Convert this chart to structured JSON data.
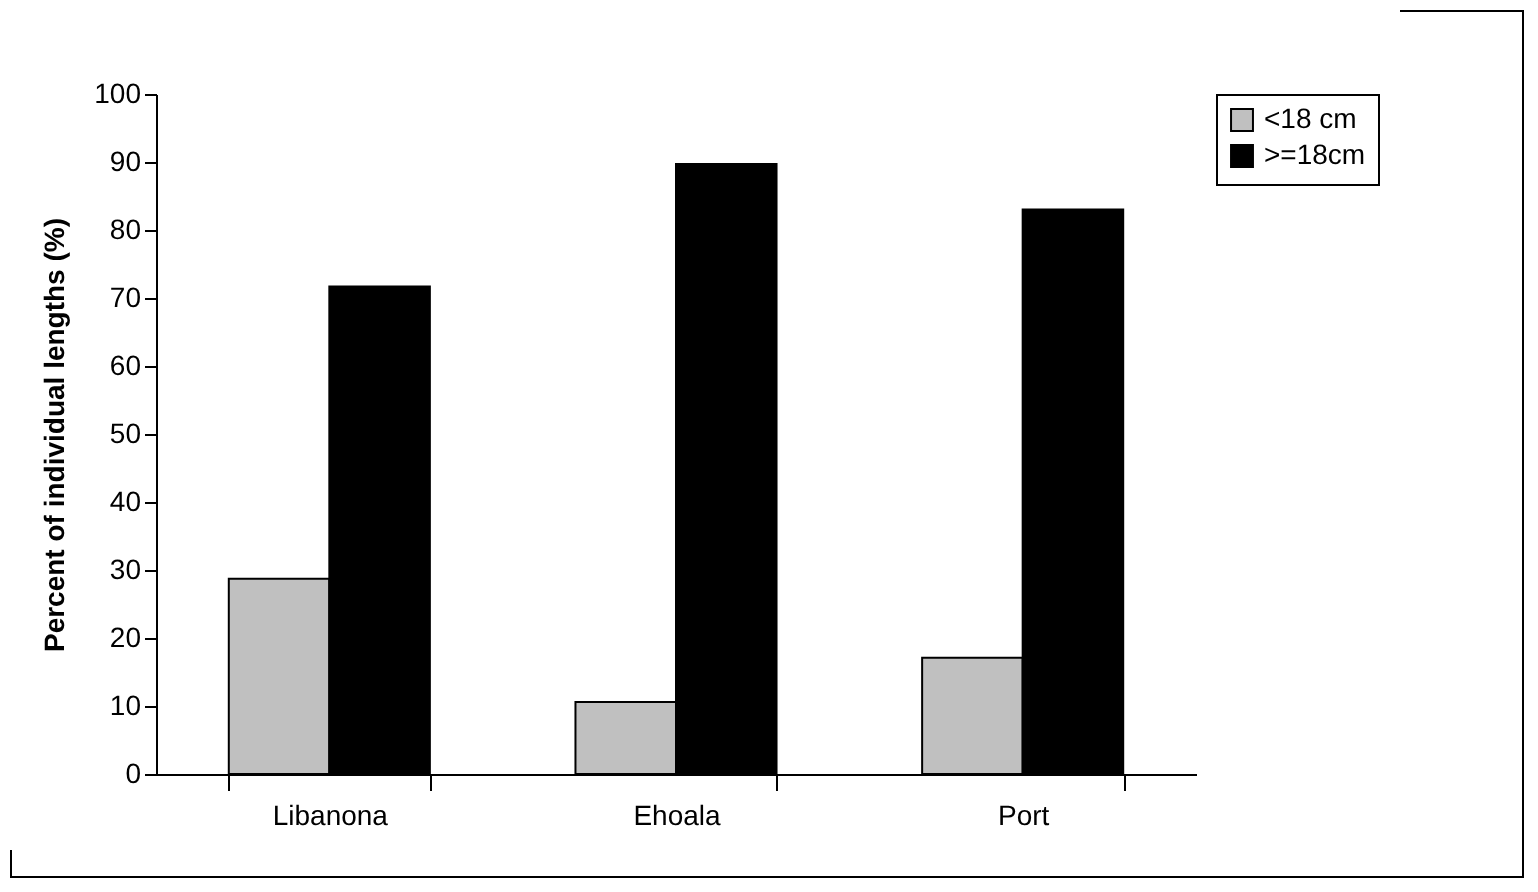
{
  "chart_data": {
    "type": "bar",
    "ylabel": "Percent of individual lengths (%)",
    "categories": [
      "Libanona",
      "Ehoala",
      "Port"
    ],
    "series": [
      {
        "name": "<18 cm",
        "color": "#c0c0c0",
        "values": [
          28.7,
          10.6,
          17.1
        ]
      },
      {
        "name": ">=18cm",
        "color": "#000000",
        "values": [
          71.7,
          89.7,
          83.0
        ]
      }
    ],
    "ylim": [
      0,
      100
    ],
    "yticks": [
      0,
      10,
      20,
      30,
      40,
      50,
      60,
      70,
      80,
      90,
      100
    ],
    "grid": false,
    "legend": "right"
  }
}
